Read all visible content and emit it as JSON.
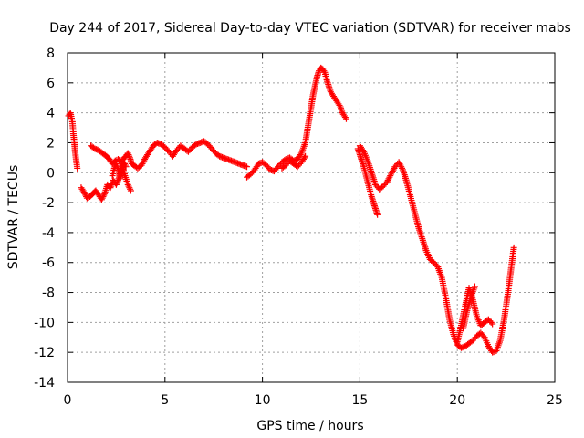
{
  "chart_data": {
    "type": "scatter",
    "title": "Day 244 of 2017, Sidereal Day-to-day VTEC variation (SDTVAR) for receiver mabs",
    "xlabel": "GPS time / hours",
    "ylabel": "SDTVAR / TECUs",
    "xlim": [
      0,
      25
    ],
    "ylim": [
      -14,
      8
    ],
    "xticks": [
      0,
      5,
      10,
      15,
      20,
      25
    ],
    "yticks": [
      -14,
      -12,
      -10,
      -8,
      -6,
      -4,
      -2,
      0,
      2,
      4,
      6,
      8
    ],
    "grid": true,
    "marker": "+",
    "color": "#ff0000",
    "series": [
      {
        "x": [
          0.05,
          0.15,
          0.25,
          0.3,
          0.35,
          0.4,
          0.45,
          0.5
        ],
        "y": [
          3.8,
          4.0,
          3.4,
          2.6,
          2.0,
          1.3,
          0.8,
          0.3
        ]
      },
      {
        "x": [
          0.7,
          0.85,
          1.0,
          1.15,
          1.3,
          1.45,
          1.6,
          1.75,
          1.9,
          2.05,
          2.2,
          2.35,
          2.5,
          2.65,
          2.8,
          2.95,
          3.1,
          3.25
        ],
        "y": [
          -1.0,
          -1.3,
          -1.7,
          -1.6,
          -1.4,
          -1.2,
          -1.5,
          -1.8,
          -1.4,
          -0.8,
          -1.0,
          -0.5,
          -0.8,
          -0.3,
          0.5,
          -0.2,
          -0.8,
          -1.2
        ]
      },
      {
        "x": [
          1.2,
          1.4,
          1.6,
          1.8,
          2.0,
          2.15,
          2.3,
          2.45,
          2.6,
          2.75,
          2.9,
          3.0,
          3.1,
          3.2,
          3.3,
          3.4,
          3.6,
          3.8,
          4.0,
          4.2,
          4.4,
          4.6,
          4.8,
          5.0,
          5.2,
          5.4,
          5.6,
          5.8,
          6.0,
          6.2,
          6.4,
          6.6,
          6.8,
          7.0,
          7.2,
          7.4,
          7.6,
          7.8,
          8.0,
          8.2,
          8.4,
          8.6,
          8.8,
          9.0,
          9.2
        ],
        "y": [
          1.8,
          1.6,
          1.5,
          1.3,
          1.1,
          0.9,
          0.6,
          0.8,
          0.9,
          0.7,
          1.0,
          1.1,
          1.3,
          1.0,
          0.6,
          0.5,
          0.3,
          0.5,
          1.0,
          1.4,
          1.8,
          2.0,
          1.9,
          1.7,
          1.4,
          1.1,
          1.5,
          1.8,
          1.6,
          1.4,
          1.7,
          1.9,
          2.0,
          2.1,
          1.9,
          1.6,
          1.3,
          1.1,
          1.0,
          0.9,
          0.8,
          0.7,
          0.6,
          0.5,
          0.4
        ]
      },
      {
        "x": [
          2.3,
          2.4,
          2.5,
          2.6,
          2.7,
          2.8,
          2.9,
          3.0
        ],
        "y": [
          -0.2,
          0.3,
          0.6,
          0.2,
          -0.4,
          0.1,
          0.7,
          0.4
        ]
      },
      {
        "x": [
          9.2,
          9.4,
          9.6,
          9.8,
          10.0,
          10.2,
          10.4,
          10.6,
          10.8,
          11.0,
          11.2,
          11.4,
          11.6,
          11.8,
          12.0,
          12.2,
          12.3,
          12.4,
          12.5,
          12.6,
          12.7,
          12.8,
          12.9,
          13.0,
          13.1,
          13.2,
          13.3,
          13.4,
          13.5,
          13.6,
          13.7,
          13.8,
          13.9,
          14.0,
          14.1,
          14.2,
          14.3
        ],
        "y": [
          -0.3,
          -0.1,
          0.2,
          0.6,
          0.7,
          0.5,
          0.2,
          0.1,
          0.4,
          0.7,
          0.9,
          1.0,
          0.8,
          0.9,
          1.3,
          2.0,
          2.8,
          3.6,
          4.4,
          5.2,
          5.8,
          6.4,
          6.8,
          7.0,
          6.9,
          6.7,
          6.2,
          5.8,
          5.4,
          5.2,
          5.0,
          4.8,
          4.6,
          4.4,
          4.0,
          3.8,
          3.6
        ]
      },
      {
        "x": [
          11.0,
          11.2,
          11.4,
          11.6,
          11.8,
          12.0,
          12.2
        ],
        "y": [
          0.3,
          0.5,
          0.8,
          0.6,
          0.4,
          0.7,
          1.1
        ]
      },
      {
        "x": [
          14.9,
          15.0,
          15.1,
          15.2,
          15.3,
          15.4,
          15.5,
          15.6,
          15.7,
          15.8,
          15.9
        ],
        "y": [
          1.6,
          1.2,
          0.8,
          0.4,
          -0.1,
          -0.6,
          -1.1,
          -1.6,
          -2.0,
          -2.4,
          -2.8
        ]
      },
      {
        "x": [
          15.0,
          15.2,
          15.4,
          15.6,
          15.8,
          16.0,
          16.2,
          16.4,
          16.6,
          16.8,
          17.0,
          17.2,
          17.4,
          17.6,
          17.8,
          18.0,
          18.2,
          18.4,
          18.6,
          18.8,
          19.0,
          19.2,
          19.4,
          19.6,
          19.8,
          20.0,
          20.2,
          20.4,
          20.6,
          20.8,
          21.0,
          21.2,
          21.4,
          21.6,
          21.8,
          22.0,
          22.2,
          22.4,
          22.6,
          22.8,
          22.9
        ],
        "y": [
          1.8,
          1.4,
          0.8,
          0.0,
          -0.8,
          -1.1,
          -0.9,
          -0.6,
          -0.1,
          0.4,
          0.7,
          0.2,
          -0.6,
          -1.6,
          -2.6,
          -3.6,
          -4.4,
          -5.2,
          -5.8,
          -6.0,
          -6.3,
          -7.0,
          -8.3,
          -9.8,
          -10.8,
          -11.5,
          -11.7,
          -11.6,
          -11.4,
          -11.2,
          -10.9,
          -10.7,
          -11.0,
          -11.6,
          -12.0,
          -11.9,
          -11.2,
          -9.8,
          -8.0,
          -6.0,
          -5.0
        ]
      },
      {
        "x": [
          20.0,
          20.2,
          20.4,
          20.6,
          20.8,
          21.0,
          21.2,
          21.4,
          21.6,
          21.8
        ],
        "y": [
          -11.3,
          -10.2,
          -8.9,
          -7.7,
          -8.5,
          -9.6,
          -10.2,
          -10.0,
          -9.8,
          -10.1
        ]
      },
      {
        "x": [
          20.3,
          20.5,
          20.7,
          20.9
        ],
        "y": [
          -10.4,
          -9.2,
          -8.3,
          -7.6
        ]
      }
    ]
  }
}
